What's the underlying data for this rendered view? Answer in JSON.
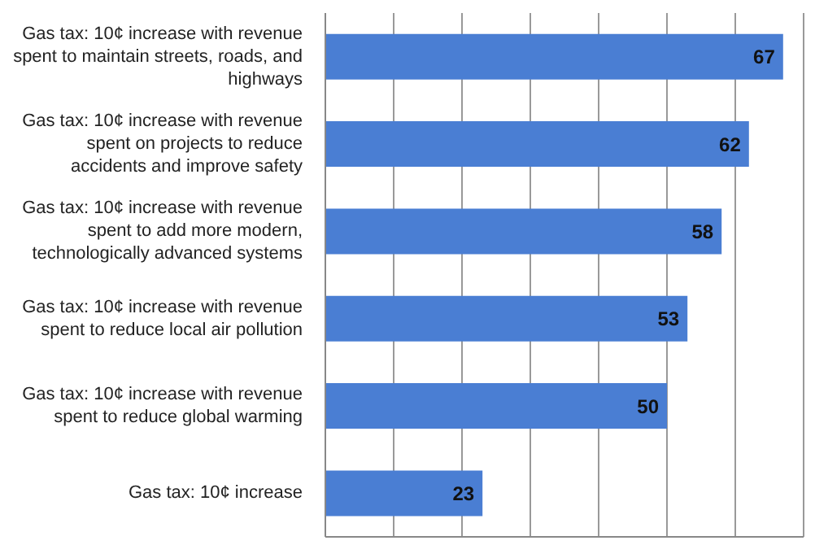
{
  "chart_data": {
    "type": "bar",
    "orientation": "horizontal",
    "categories": [
      "Gas tax: 10¢ increase with revenue spent to maintain streets, roads, and highways",
      "Gas tax: 10¢ increase with revenue spent on projects to reduce accidents and improve safety",
      "Gas tax: 10¢ increase with revenue spent to add more modern, technologically advanced systems",
      "Gas tax: 10¢ increase with revenue spent to reduce local air pollution",
      "Gas tax: 10¢ increase with revenue spent to reduce global warming",
      "Gas tax: 10¢ increase"
    ],
    "values": [
      67,
      62,
      58,
      53,
      50,
      23
    ],
    "color": "#4a7ed3",
    "xlim": [
      0,
      70
    ],
    "xticks": [
      {
        "value": 0,
        "label": null
      },
      {
        "value": 10,
        "label": null
      },
      {
        "value": 20,
        "label": null
      },
      {
        "value": 30,
        "label": null
      },
      {
        "value": 40,
        "label": null
      },
      {
        "value": 50,
        "label": null
      },
      {
        "value": 60,
        "label": null
      },
      {
        "value": 70,
        "label": null
      }
    ],
    "tick_labels": "y",
    "grid": "x",
    "data_labels": true
  }
}
